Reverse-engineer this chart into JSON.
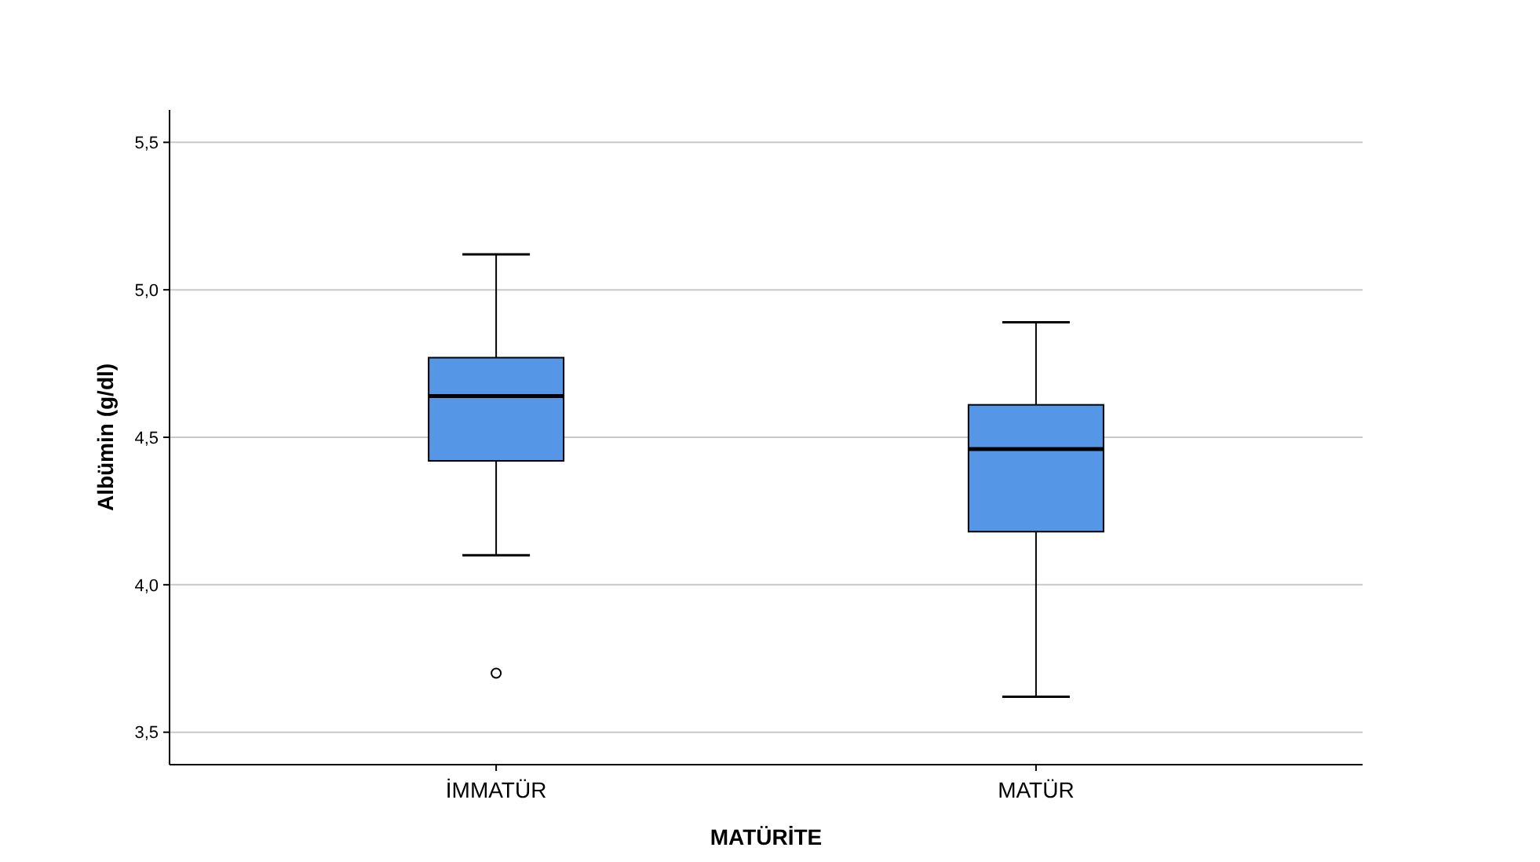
{
  "chart_data": {
    "type": "box",
    "xlabel": "MATÜRİTE",
    "ylabel": "Albümin (g/dl)",
    "categories": [
      "İMMATÜR",
      "MATÜR"
    ],
    "boxes": [
      {
        "low": 4.1,
        "q1": 4.42,
        "median": 4.64,
        "q3": 4.77,
        "high": 5.12,
        "outliers": [
          3.7
        ]
      },
      {
        "low": 3.62,
        "q1": 4.18,
        "median": 4.46,
        "q3": 4.61,
        "high": 4.89
      }
    ],
    "color": "#5596e6",
    "ylim": [
      3.39,
      5.61
    ],
    "yticks": [
      {
        "value": 3.5,
        "label": "3,5"
      },
      {
        "value": 4,
        "label": "4,0"
      },
      {
        "value": 4.5,
        "label": "4,5"
      },
      {
        "value": 5,
        "label": "5,0"
      },
      {
        "value": 5.5,
        "label": "5,5"
      }
    ],
    "grid": "y"
  }
}
